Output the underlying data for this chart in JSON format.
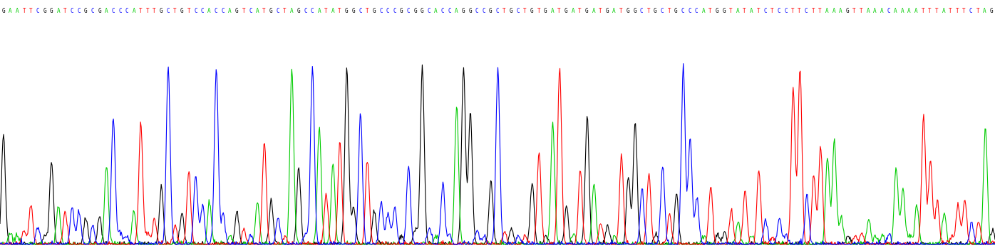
{
  "sequence": "GAATTCGGATCCGCGACCCATTTGCTGTCCACCAGTCATGCTAGCCATATGGCTGCCCGCGGCACCAGGCCGCTGCTGTGATGATGATGATGGCTGCTGCCCATGGTATATCTCCTTCTTAAAGTTAAACAAAATTTATTTCTAG",
  "base_colors": {
    "A": "#00cc00",
    "T": "#ff0000",
    "C": "#0000ff",
    "G": "#000000"
  },
  "bg_color": "#ffffff",
  "num_points": 1396,
  "trace_linewidth": 0.8,
  "seq_fontsize": 5.5
}
